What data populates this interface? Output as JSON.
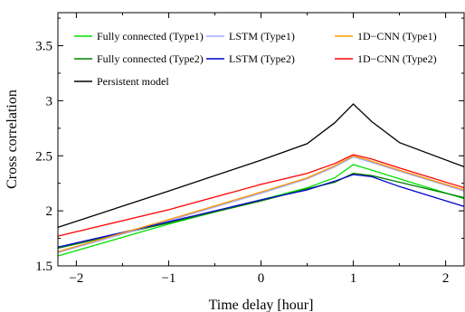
{
  "chart_data": {
    "type": "line",
    "title": "",
    "xlabel": "Time delay [hour]",
    "ylabel": "Cross correlation",
    "xlim": [
      -2.2,
      2.2
    ],
    "ylim": [
      1.5,
      3.8
    ],
    "xticks": [
      -2,
      -1,
      0,
      1,
      2
    ],
    "xtick_labels": [
      "−2",
      "−1",
      "0",
      "1",
      "2"
    ],
    "yticks": [
      1.5,
      2,
      2.5,
      3,
      3.5
    ],
    "ytick_labels": [
      "1.5",
      "2",
      "2.5",
      "3",
      "3.5"
    ],
    "grid": false,
    "legend_position": "top",
    "series": [
      {
        "name": "Fully connected (Type1)",
        "color": "#00e000",
        "x": [
          -2.2,
          -1.0,
          0.0,
          0.5,
          0.8,
          1.0,
          1.2,
          1.5,
          2.2
        ],
        "y": [
          1.59,
          1.88,
          2.1,
          2.21,
          2.3,
          2.42,
          2.37,
          2.29,
          2.11
        ]
      },
      {
        "name": "Fully connected (Type2)",
        "color": "#008000",
        "x": [
          -2.2,
          -1.0,
          0.0,
          0.5,
          0.8,
          1.0,
          1.2,
          1.5,
          2.2
        ],
        "y": [
          1.66,
          1.89,
          2.09,
          2.2,
          2.26,
          2.34,
          2.32,
          2.26,
          2.12
        ]
      },
      {
        "name": "LSTM (Type1)",
        "color": "#a0a8ff",
        "x": [
          -2.2,
          -1.0,
          0.0,
          0.5,
          0.8,
          1.0,
          1.2,
          1.5,
          2.2
        ],
        "y": [
          1.62,
          1.91,
          2.16,
          2.29,
          2.4,
          2.49,
          2.44,
          2.36,
          2.18
        ]
      },
      {
        "name": "LSTM (Type2)",
        "color": "#0000cc",
        "x": [
          -2.2,
          -1.0,
          0.0,
          0.5,
          0.8,
          1.0,
          1.2,
          1.5,
          2.2
        ],
        "y": [
          1.67,
          1.9,
          2.1,
          2.19,
          2.27,
          2.33,
          2.31,
          2.22,
          2.04
        ]
      },
      {
        "name": "1D−CNN (Type1)",
        "color": "#ff9900",
        "x": [
          -2.2,
          -1.0,
          0.0,
          0.5,
          0.8,
          1.0,
          1.2,
          1.5,
          2.2
        ],
        "y": [
          1.63,
          1.92,
          2.17,
          2.3,
          2.41,
          2.5,
          2.45,
          2.37,
          2.19
        ]
      },
      {
        "name": "1D−CNN (Type2)",
        "color": "#ff0000",
        "x": [
          -2.2,
          -1.0,
          0.0,
          0.5,
          0.8,
          1.0,
          1.2,
          1.5,
          2.2
        ],
        "y": [
          1.77,
          2.01,
          2.24,
          2.34,
          2.43,
          2.51,
          2.47,
          2.39,
          2.21
        ]
      },
      {
        "name": "Persistent model",
        "color": "#000000",
        "x": [
          -2.2,
          -1.0,
          0.0,
          0.5,
          0.8,
          1.0,
          1.2,
          1.5,
          2.2
        ],
        "y": [
          1.85,
          2.18,
          2.46,
          2.61,
          2.8,
          2.97,
          2.81,
          2.62,
          2.4
        ]
      }
    ]
  }
}
